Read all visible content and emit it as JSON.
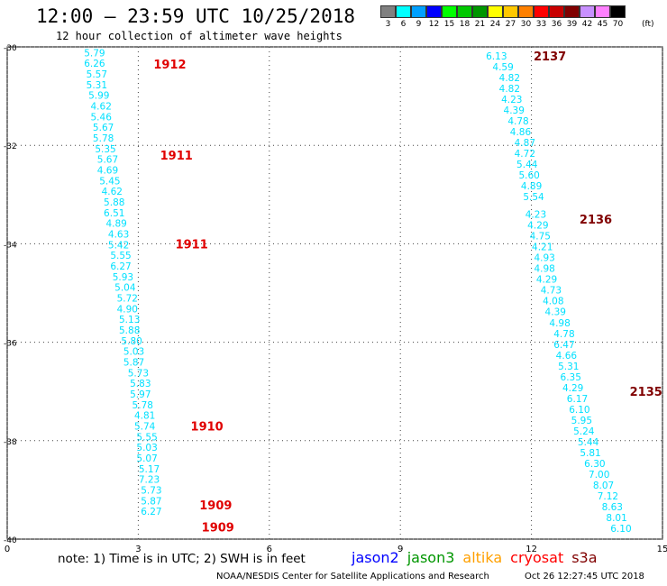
{
  "title": "12:00 — 23:59 UTC 10/25/2018",
  "subtitle": "12 hour collection of altimeter wave heights",
  "legend": {
    "colors": [
      "#808080",
      "#00ffff",
      "#00a0ff",
      "#0000ff",
      "#00ff00",
      "#00c800",
      "#009600",
      "#ffff00",
      "#ffc800",
      "#ff8000",
      "#ff0000",
      "#c80000",
      "#800000",
      "#c890ff",
      "#ff80ff",
      "#000000"
    ],
    "labels": [
      "3",
      "6",
      "9",
      "12",
      "15",
      "18",
      "21",
      "24",
      "27",
      "30",
      "33",
      "36",
      "39",
      "42",
      "45",
      "70"
    ],
    "unit": "(ft)"
  },
  "note": "note:  1) Time is in UTC;  2) SWH is in feet",
  "satellites": [
    {
      "name": "jason2",
      "color": "#0000ff"
    },
    {
      "name": "jason3",
      "color": "#009600"
    },
    {
      "name": "altika",
      "color": "#ffa000"
    },
    {
      "name": "cryosat",
      "color": "#ff0000"
    },
    {
      "name": "s3a",
      "color": "#800000"
    }
  ],
  "credit": "NOAA/NESDIS Center for Satellite Applications and Research",
  "timestamp": "Oct 26 12:27:45 UTC 2018",
  "chart_data": {
    "type": "scatter",
    "xlim": [
      0,
      15
    ],
    "ylim": [
      -40,
      -30
    ],
    "x_ticks": [
      "0",
      "3",
      "6",
      "9",
      "12",
      "15"
    ],
    "y_ticks": [
      "-30",
      "-32",
      "-34",
      "-36",
      "-38",
      "-40"
    ],
    "grid": true,
    "points_color": "#00e0ff",
    "track_a": {
      "x": [
        2.0,
        2.0,
        2.05,
        2.05,
        2.1,
        2.15,
        2.15,
        2.2,
        2.2,
        2.25,
        2.3,
        2.3,
        2.35,
        2.4,
        2.45,
        2.45,
        2.5,
        2.55,
        2.55,
        2.6,
        2.6,
        2.65,
        2.7,
        2.75,
        2.75,
        2.8,
        2.8,
        2.85,
        2.9,
        2.9,
        3.0,
        3.05,
        3.05,
        3.1,
        3.15,
        3.15,
        3.2,
        3.2,
        3.2,
        3.25,
        3.25,
        3.3,
        3.3,
        3.3
      ],
      "y": [
        -30.12,
        -30.33,
        -30.55,
        -30.77,
        -30.98,
        -31.2,
        -31.42,
        -31.63,
        -31.85,
        -32.07,
        -32.28,
        -32.5,
        -32.72,
        -32.93,
        -33.15,
        -33.37,
        -33.58,
        -33.8,
        -34.02,
        -34.23,
        -34.45,
        -34.67,
        -34.88,
        -35.1,
        -35.32,
        -35.53,
        -35.75,
        -35.97,
        -36.18,
        -36.4,
        -36.62,
        -36.83,
        -37.05,
        -37.27,
        -37.48,
        -37.7,
        -37.92,
        -38.13,
        -38.35,
        -38.57,
        -38.78,
        -39.0,
        -39.22,
        -39.43
      ],
      "values": [
        "5.79",
        "6.26",
        "5.57",
        "5.31",
        "5.99",
        "4.62",
        "5.46",
        "5.67",
        "5.78",
        "5.35",
        "5.67",
        "4.69",
        "5.45",
        "4.62",
        "5.88",
        "6.51",
        "4.89",
        "4.63",
        "5.42",
        "5.55",
        "6.27",
        "5.93",
        "5.04",
        "5.72",
        "4.90",
        "5.13",
        "5.88",
        "5.80",
        "5.03",
        "5.87",
        "5.73",
        "5.83",
        "5.97",
        "5.78",
        "4.81",
        "5.74",
        "5.55",
        "5.03",
        "5.07",
        "5.17",
        "7.23",
        "5.73",
        "5.87",
        "6.27"
      ]
    },
    "track_b": {
      "x": [
        11.2,
        11.35,
        11.5,
        11.5,
        11.55,
        11.6,
        11.7,
        11.75,
        11.85,
        11.85,
        11.9,
        11.95,
        12.0,
        12.05,
        12.1,
        12.15,
        12.2,
        12.25,
        12.3,
        12.3,
        12.35,
        12.45,
        12.5,
        12.55,
        12.65,
        12.75,
        12.75,
        12.8,
        12.85,
        12.9,
        12.95,
        13.05,
        13.1,
        13.15,
        13.2,
        13.3,
        13.35,
        13.45,
        13.55,
        13.65,
        13.75,
        13.85,
        13.95,
        14.05
      ],
      "y": [
        -30.18,
        -30.4,
        -30.62,
        -30.84,
        -31.06,
        -31.28,
        -31.5,
        -31.72,
        -31.94,
        -32.16,
        -32.38,
        -32.6,
        -32.82,
        -33.04,
        -33.4,
        -33.62,
        -33.84,
        -34.06,
        -34.28,
        -34.5,
        -34.72,
        -34.94,
        -35.16,
        -35.38,
        -35.6,
        -35.82,
        -36.04,
        -36.26,
        -36.48,
        -36.7,
        -36.92,
        -37.14,
        -37.36,
        -37.58,
        -37.8,
        -38.02,
        -38.24,
        -38.46,
        -38.68,
        -38.9,
        -39.12,
        -39.34,
        -39.56,
        -39.78
      ],
      "values": [
        "6.13",
        "4.59",
        "4.82",
        "4.82",
        "4.23",
        "4.39",
        "4.78",
        "4.86",
        "4.87",
        "4.72",
        "5.44",
        "5.60",
        "4.89",
        "5.54",
        "4.23",
        "4.29",
        "4.75",
        "4.21",
        "4.93",
        "4.98",
        "4.29",
        "4.73",
        "4.08",
        "4.39",
        "4.98",
        "4.78",
        "6.47",
        "4.66",
        "5.31",
        "6.35",
        "4.29",
        "6.17",
        "6.10",
        "5.95",
        "5.24",
        "5.44",
        "5.81",
        "6.30",
        "7.00",
        "8.07",
        "7.12",
        "8.63",
        "8.01",
        "6.10"
      ]
    },
    "time_labels": [
      {
        "text": "1912",
        "x": 3.35,
        "y": -30.35,
        "color": "#e00000"
      },
      {
        "text": "1911",
        "x": 3.5,
        "y": -32.2,
        "color": "#e00000"
      },
      {
        "text": "1911",
        "x": 3.85,
        "y": -34.0,
        "color": "#e00000"
      },
      {
        "text": "1910",
        "x": 4.2,
        "y": -37.7,
        "color": "#e00000"
      },
      {
        "text": "1909",
        "x": 4.4,
        "y": -39.3,
        "color": "#e00000"
      },
      {
        "text": "1909",
        "x": 4.45,
        "y": -39.75,
        "color": "#e00000"
      },
      {
        "text": "2137",
        "x": 12.05,
        "y": -30.18,
        "color": "#800000"
      },
      {
        "text": "2136",
        "x": 13.1,
        "y": -33.5,
        "color": "#800000"
      },
      {
        "text": "2135",
        "x": 14.25,
        "y": -37.0,
        "color": "#800000"
      }
    ]
  }
}
